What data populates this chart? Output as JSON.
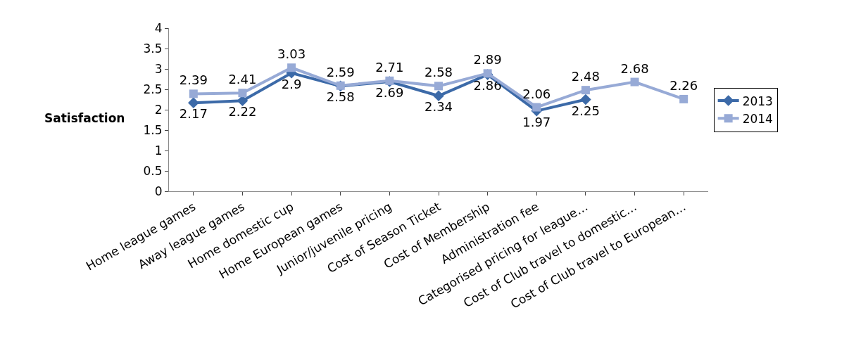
{
  "chart_data": {
    "type": "line",
    "ylabel": "Satisfaction",
    "categories": [
      "Home league games",
      "Away league games",
      "Home domestic cup",
      "Home European games",
      "Junior/juvenile pricing",
      "Cost of Season Ticket",
      "Cost of Membership",
      "Administration fee",
      "Categorised pricing for league…",
      "Cost of Club travel to domestic…",
      "Cost of Club travel to European…"
    ],
    "series": [
      {
        "name": "2013",
        "color": "#3c6aa8",
        "marker": "diamond",
        "values": [
          2.17,
          2.22,
          2.9,
          2.58,
          2.69,
          2.34,
          2.86,
          1.97,
          2.25,
          null,
          null
        ]
      },
      {
        "name": "2014",
        "color": "#97aad6",
        "marker": "square",
        "values": [
          2.39,
          2.41,
          3.03,
          2.59,
          2.71,
          2.58,
          2.89,
          2.06,
          2.48,
          2.68,
          2.26
        ]
      }
    ],
    "ylim": [
      0,
      4
    ],
    "yticks": [
      0,
      0.5,
      1,
      1.5,
      2,
      2.5,
      3,
      3.5,
      4
    ],
    "legend": "right",
    "data_labels": true,
    "line_style": "solid"
  }
}
